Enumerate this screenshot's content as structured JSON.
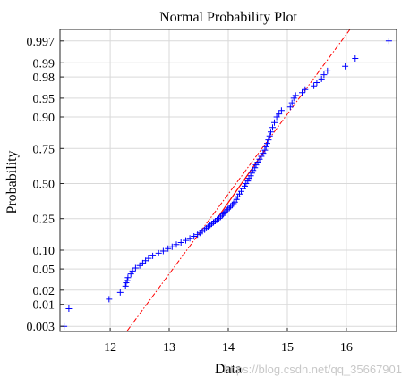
{
  "chart_data": {
    "type": "scatter",
    "title": "Normal Probability Plot",
    "xlabel": "Data",
    "ylabel": "Probability",
    "xlim": [
      11.15,
      16.85
    ],
    "x_ticks": [
      12,
      13,
      14,
      15,
      16
    ],
    "y_ticks": [
      0.003,
      0.01,
      0.02,
      0.05,
      0.1,
      0.25,
      0.5,
      0.75,
      0.9,
      0.95,
      0.98,
      0.99,
      0.997
    ],
    "y_tick_labels": [
      "0.003",
      "0.01",
      "0.02",
      "0.05",
      "0.10",
      "0.25",
      "0.50",
      "0.75",
      "0.90",
      "0.95",
      "0.98",
      "0.99",
      "0.997"
    ],
    "y_scale": "normal-probability",
    "grid": true,
    "marker": "+",
    "colors": {
      "points": "#0000ff",
      "reference_line": "#ff0000",
      "grid": "#d9d9d9"
    },
    "points": [
      [
        11.22,
        0.003
      ],
      [
        11.3,
        0.008
      ],
      [
        11.98,
        0.013
      ],
      [
        12.17,
        0.018
      ],
      [
        12.26,
        0.024
      ],
      [
        12.27,
        0.028
      ],
      [
        12.29,
        0.031
      ],
      [
        12.3,
        0.035
      ],
      [
        12.35,
        0.041
      ],
      [
        12.38,
        0.046
      ],
      [
        12.43,
        0.052
      ],
      [
        12.5,
        0.057
      ],
      [
        12.55,
        0.063
      ],
      [
        12.6,
        0.069
      ],
      [
        12.65,
        0.075
      ],
      [
        12.72,
        0.082
      ],
      [
        12.82,
        0.09
      ],
      [
        12.9,
        0.097
      ],
      [
        12.98,
        0.105
      ],
      [
        13.05,
        0.112
      ],
      [
        13.12,
        0.12
      ],
      [
        13.2,
        0.128
      ],
      [
        13.28,
        0.137
      ],
      [
        13.35,
        0.146
      ],
      [
        13.42,
        0.155
      ],
      [
        13.48,
        0.163
      ],
      [
        13.52,
        0.171
      ],
      [
        13.56,
        0.179
      ],
      [
        13.6,
        0.187
      ],
      [
        13.63,
        0.195
      ],
      [
        13.66,
        0.203
      ],
      [
        13.69,
        0.211
      ],
      [
        13.72,
        0.219
      ],
      [
        13.75,
        0.227
      ],
      [
        13.78,
        0.235
      ],
      [
        13.81,
        0.243
      ],
      [
        13.84,
        0.251
      ],
      [
        13.87,
        0.26
      ],
      [
        13.9,
        0.27
      ],
      [
        13.92,
        0.28
      ],
      [
        13.94,
        0.29
      ],
      [
        13.97,
        0.3
      ],
      [
        13.99,
        0.31
      ],
      [
        14.02,
        0.32
      ],
      [
        14.04,
        0.33
      ],
      [
        14.07,
        0.34
      ],
      [
        14.09,
        0.35
      ],
      [
        14.11,
        0.36
      ],
      [
        14.14,
        0.38
      ],
      [
        14.16,
        0.4
      ],
      [
        14.19,
        0.42
      ],
      [
        14.22,
        0.44
      ],
      [
        14.25,
        0.46
      ],
      [
        14.28,
        0.48
      ],
      [
        14.3,
        0.5
      ],
      [
        14.33,
        0.52
      ],
      [
        14.35,
        0.54
      ],
      [
        14.38,
        0.56
      ],
      [
        14.4,
        0.58
      ],
      [
        14.42,
        0.6
      ],
      [
        14.45,
        0.62
      ],
      [
        14.47,
        0.64
      ],
      [
        14.5,
        0.66
      ],
      [
        14.53,
        0.68
      ],
      [
        14.56,
        0.7
      ],
      [
        14.59,
        0.72
      ],
      [
        14.62,
        0.74
      ],
      [
        14.64,
        0.76
      ],
      [
        14.66,
        0.78
      ],
      [
        14.68,
        0.8
      ],
      [
        14.7,
        0.82
      ],
      [
        14.72,
        0.84
      ],
      [
        14.75,
        0.86
      ],
      [
        14.78,
        0.88
      ],
      [
        14.82,
        0.9
      ],
      [
        14.86,
        0.91
      ],
      [
        14.9,
        0.92
      ],
      [
        15.05,
        0.93
      ],
      [
        15.08,
        0.94
      ],
      [
        15.11,
        0.95
      ],
      [
        15.14,
        0.955
      ],
      [
        15.25,
        0.96
      ],
      [
        15.3,
        0.965
      ],
      [
        15.45,
        0.97
      ],
      [
        15.5,
        0.974
      ],
      [
        15.58,
        0.978
      ],
      [
        15.62,
        0.982
      ],
      [
        15.68,
        0.985
      ],
      [
        15.98,
        0.988
      ],
      [
        16.15,
        0.992
      ],
      [
        16.72,
        0.997
      ]
    ],
    "reference_line": {
      "solid": [
        [
          13.82,
          0.255
        ],
        [
          14.62,
          0.74
        ]
      ],
      "dashed": [
        [
          12.08,
          0.0008
        ],
        [
          16.55,
          0.9999
        ]
      ]
    }
  },
  "watermark": "https://blog.csdn.net/qq_35667901"
}
